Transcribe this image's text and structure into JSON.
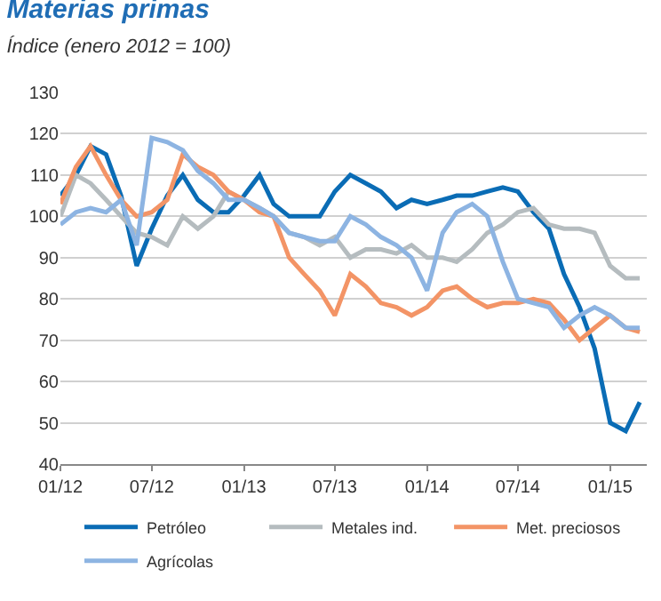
{
  "chart_data": {
    "type": "line",
    "title": "Materias primas",
    "subtitle": "Índice (enero 2012 = 100)",
    "x": [
      "2012-01-01",
      "2012-02-01",
      "2012-03-01",
      "2012-04-01",
      "2012-05-01",
      "2012-06-01",
      "2012-07-01",
      "2012-08-01",
      "2012-09-01",
      "2012-10-01",
      "2012-11-01",
      "2012-12-01",
      "2013-01-01",
      "2013-02-01",
      "2013-03-01",
      "2013-04-01",
      "2013-05-01",
      "2013-06-01",
      "2013-07-01",
      "2013-08-01",
      "2013-09-01",
      "2013-10-01",
      "2013-11-01",
      "2013-12-01",
      "2014-01-01",
      "2014-02-01",
      "2014-03-01",
      "2014-04-01",
      "2014-05-01",
      "2014-06-01",
      "2014-07-01",
      "2014-08-01",
      "2014-09-01",
      "2014-10-01",
      "2014-11-01",
      "2014-12-01",
      "2015-01-01",
      "2015-02-01",
      "2015-03-01"
    ],
    "series": [
      {
        "name": "Petróleo",
        "color": "#0a6cb5",
        "values": [
          105,
          110,
          117,
          115,
          105,
          88,
          97,
          105,
          110,
          104,
          101,
          101,
          105,
          110,
          103,
          100,
          100,
          100,
          106,
          110,
          108,
          106,
          102,
          104,
          103,
          104,
          105,
          105,
          106,
          107,
          106,
          101,
          97,
          86,
          78,
          68,
          50,
          48,
          55
        ]
      },
      {
        "name": "Metales ind.",
        "color": "#b5bcbf",
        "values": [
          100,
          110,
          108,
          104,
          100,
          96,
          95,
          93,
          100,
          97,
          100,
          106,
          104,
          102,
          100,
          96,
          95,
          93,
          95,
          90,
          92,
          92,
          91,
          93,
          90,
          90,
          89,
          92,
          96,
          98,
          101,
          102,
          98,
          97,
          97,
          96,
          88,
          85,
          85
        ]
      },
      {
        "name": "Met. preciosos",
        "color": "#f39466",
        "values": [
          103,
          112,
          117,
          110,
          104,
          100,
          101,
          104,
          115,
          112,
          110,
          106,
          104,
          101,
          100,
          90,
          86,
          82,
          76,
          86,
          83,
          79,
          78,
          76,
          78,
          82,
          83,
          80,
          78,
          79,
          79,
          80,
          79,
          75,
          70,
          73,
          76,
          73,
          72
        ]
      },
      {
        "name": "Agrícolas",
        "color": "#8db4e2",
        "values": [
          98,
          101,
          102,
          101,
          104,
          93,
          119,
          118,
          116,
          111,
          108,
          104,
          104,
          102,
          100,
          96,
          95,
          94,
          94,
          100,
          98,
          95,
          93,
          90,
          82,
          96,
          101,
          103,
          100,
          89,
          80,
          79,
          78,
          73,
          76,
          78,
          76,
          73,
          73
        ]
      }
    ],
    "xlim": [
      "2012-01-01",
      "2015-03-15"
    ],
    "xticks": [
      {
        "value": "2012-01-01",
        "label": "01/12"
      },
      {
        "value": "2012-07-01",
        "label": "07/12"
      },
      {
        "value": "2013-01-01",
        "label": "01/13"
      },
      {
        "value": "2013-07-01",
        "label": "07/13"
      },
      {
        "value": "2014-01-01",
        "label": "01/14"
      },
      {
        "value": "2014-07-01",
        "label": "07/14"
      },
      {
        "value": "2015-01-01",
        "label": "01/15"
      }
    ],
    "ylim": [
      40,
      130
    ],
    "yticks": [
      40,
      50,
      60,
      70,
      80,
      90,
      100,
      110,
      120,
      130
    ],
    "grid": "y",
    "legend": "bottom",
    "marker": "none",
    "line_style": "solid"
  }
}
